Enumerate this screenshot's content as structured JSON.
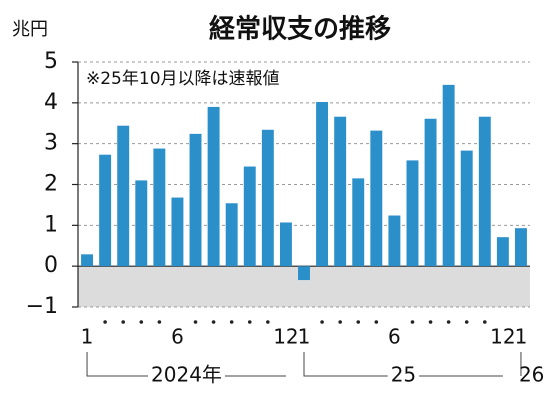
{
  "chart_data": {
    "type": "bar",
    "title": "経常収支の推移",
    "y_label": "兆円",
    "annotation": "※25年10月以降は速報値",
    "categories": [
      "1",
      null,
      null,
      null,
      null,
      "6",
      null,
      null,
      null,
      null,
      null,
      "12",
      "1",
      null,
      null,
      null,
      null,
      "6",
      null,
      null,
      null,
      null,
      null,
      "12",
      "1"
    ],
    "x_groups": [
      "2024年",
      "25",
      "26"
    ],
    "values": [
      0.29,
      2.73,
      3.44,
      2.1,
      2.88,
      1.68,
      3.24,
      3.9,
      1.54,
      2.44,
      3.34,
      1.07,
      -0.34,
      4.02,
      3.66,
      2.15,
      3.32,
      1.24,
      2.59,
      3.61,
      4.44,
      2.83,
      3.66,
      0.71,
      0.93
    ],
    "color": "#2b8fca",
    "negative_fill": "#dcdcdc",
    "ylim": [
      -1,
      5
    ],
    "yticks": [
      {
        "value": -1,
        "label": "−1"
      },
      0,
      1,
      2,
      3,
      4,
      5
    ],
    "grid": true
  }
}
